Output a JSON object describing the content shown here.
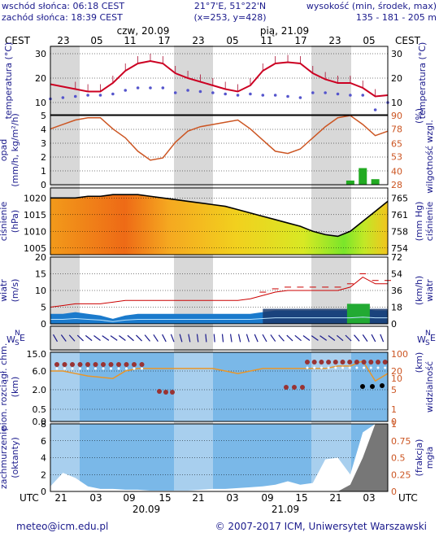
{
  "header": {
    "sunrise": "wschód słońca: 06:18 CEST",
    "sunset": "zachód słońca: 18:39 CEST",
    "coords": "21°7'E, 51°22'N",
    "grid": "(x=253, y=428)",
    "elevation_label": "wysokość (min, środek, max)",
    "elevation_values": "135 - 181 - 205 m"
  },
  "footer": {
    "email": "meteo@icm.edu.pl",
    "copyright": "© 2007-2017 ICM, Uniwersytet Warszawski"
  },
  "colors": {
    "temperature": "#cc0022",
    "dewpoint": "#5555cc",
    "humidity": "#cc5522",
    "pressure_line": "#000000",
    "wind": "#1a7acc",
    "gust": "#cc0000",
    "cloud_bg": "#7ab8e8",
    "precip": "#22aa22",
    "night_band": "#d8d8d8",
    "label_blue": "#1a1a8c"
  },
  "chart_data": {
    "type": "line",
    "top_axis": {
      "label": "CEST",
      "days": [
        "czw, 20.09",
        "pią, 21.09"
      ],
      "hours": [
        "23",
        "05",
        "11",
        "17",
        "23",
        "05",
        "11",
        "17",
        "23",
        "05"
      ]
    },
    "bottom_axis": {
      "label": "UTC",
      "hours": [
        "21",
        "03",
        "09",
        "15",
        "21",
        "03",
        "09",
        "15",
        "21",
        "03"
      ],
      "dates": [
        "20.09",
        "21.09"
      ]
    },
    "panels": [
      {
        "name": "temperature",
        "left_label": "temperatura (°C)",
        "right_label": "temperatura (°C)",
        "ylim": [
          5,
          33
        ],
        "ticks": [
          10,
          20,
          30
        ],
        "series": [
          {
            "name": "temperature",
            "values": [
              17.5,
              16.5,
              15.5,
              14.5,
              14.5,
              18,
              23,
              26,
              27,
              26,
              22,
              20,
              18.5,
              17,
              15.5,
              14.5,
              17,
              23,
              26,
              26.5,
              26,
              22,
              19.5,
              18,
              18,
              16,
              12.5,
              13
            ]
          },
          {
            "name": "dewpoint",
            "values": [
              11.5,
              12,
              12.5,
              13,
              13,
              13.5,
              15,
              16,
              16,
              16,
              14,
              15,
              14.5,
              14,
              13.5,
              13,
              13.5,
              13,
              13,
              12.5,
              12,
              14,
              14,
              13.5,
              13,
              13,
              7,
              10
            ]
          }
        ]
      },
      {
        "name": "precip_humidity",
        "left_label": "opad (mm/h, kg/m²/h)",
        "left_ticks": [
          0,
          1,
          2,
          3,
          4,
          5
        ],
        "right_label": "wilgotność wzgl. (%)",
        "right_ticks": [
          28,
          40,
          53,
          65,
          78,
          90
        ],
        "series": [
          {
            "name": "humidity",
            "values": [
              78,
              82,
              86,
              88,
              88,
              78,
              70,
              58,
              50,
              52,
              66,
              76,
              80,
              82,
              84,
              86,
              78,
              68,
              58,
              56,
              60,
              70,
              80,
              88,
              90,
              82,
              72,
              76
            ]
          },
          {
            "name": "precipitation",
            "values": [
              0,
              0,
              0,
              0,
              0,
              0,
              0,
              0,
              0,
              0,
              0,
              0,
              0,
              0,
              0,
              0,
              0,
              0,
              0,
              0,
              0,
              0,
              0,
              0,
              0.3,
              1.2,
              0.4,
              0
            ]
          }
        ]
      },
      {
        "name": "pressure",
        "left_label": "ciśnienie (hPa)",
        "left_ticks": [
          1005,
          1010,
          1015,
          1020
        ],
        "right_label": "(mm Hg) ciśnienie",
        "right_ticks": [
          754,
          758,
          761,
          765
        ],
        "ylim": [
          1003,
          1023
        ],
        "series": [
          {
            "name": "pressure",
            "values": [
              1020,
              1020,
              1020,
              1020.5,
              1020.5,
              1021,
              1021,
              1021,
              1020.5,
              1020,
              1019.5,
              1019,
              1018.5,
              1018,
              1017.5,
              1016.5,
              1015.5,
              1014.5,
              1013.5,
              1012.5,
              1011.5,
              1010,
              1009,
              1008.5,
              1010,
              1013,
              1016,
              1019
            ]
          }
        ]
      },
      {
        "name": "wind",
        "left_label": "wiatr (m/s)",
        "left_ticks": [
          0,
          5,
          10,
          15,
          20
        ],
        "right_label": "(km/h) wiatr",
        "right_ticks": [
          0,
          18,
          36,
          54,
          72
        ],
        "series": [
          {
            "name": "wind_speed",
            "values": [
              3,
              3,
              3.5,
              3,
              2.5,
              1.5,
              2.5,
              3,
              3,
              3,
              3,
              3,
              3,
              3,
              3,
              3,
              3,
              3.5,
              4,
              4,
              4,
              4,
              4,
              4,
              4,
              4.5,
              4,
              4
            ]
          },
          {
            "name": "gusts",
            "values": [
              5,
              5.5,
              6,
              6,
              6,
              6.5,
              7,
              7,
              7,
              7,
              7,
              7,
              7,
              7,
              7,
              7,
              7.5,
              8.5,
              9.5,
              10,
              10,
              10,
              10,
              10,
              11,
              14,
              12,
              12
            ]
          }
        ]
      },
      {
        "name": "clouds",
        "left_label": "pion. rozciągł. chm. (km)",
        "left_ticks": [
          0.0,
          0.5,
          2.0,
          6.0,
          15.0
        ],
        "right_label": "widzialność (km)",
        "right_ticks": [
          0,
          1,
          5,
          10,
          20,
          100
        ],
        "series": [
          {
            "name": "visibility",
            "values": [
              20,
              20,
              18,
              16,
              15,
              14,
              20,
              22,
              22,
              22,
              22,
              22,
              22,
              22,
              20,
              18,
              20,
              22,
              22,
              22,
              22,
              22,
              22,
              24,
              24,
              28,
              12,
              18
            ]
          }
        ]
      },
      {
        "name": "cloud_cover_fog",
        "left_label": "zachmurzenie (oktanty)",
        "left_ticks": [
          0,
          2,
          4,
          6,
          8
        ],
        "right_label": "(frakcja) mgła",
        "right_ticks": [
          0,
          0.25,
          0.5,
          0.75,
          1
        ],
        "series": [
          {
            "name": "low_cloud",
            "values": [
              0.6,
              2.2,
              1.6,
              0.6,
              0.3,
              0.3,
              0.2,
              0.2,
              0.1,
              0.1,
              0.1,
              0.1,
              0.2,
              0.3,
              0.3,
              0.4,
              0.5,
              0.6,
              0.8,
              1.2,
              0.8,
              1.0,
              3.8,
              4.0,
              2.0,
              7.0,
              8.0,
              8.0
            ]
          },
          {
            "name": "fog",
            "values": [
              0,
              0,
              0,
              0,
              0,
              0,
              0,
              0,
              0,
              0,
              0,
              0,
              0,
              0,
              0,
              0,
              0,
              0,
              0,
              0,
              0,
              0,
              0,
              0,
              0.1,
              0.5,
              1,
              1
            ]
          }
        ]
      }
    ]
  }
}
